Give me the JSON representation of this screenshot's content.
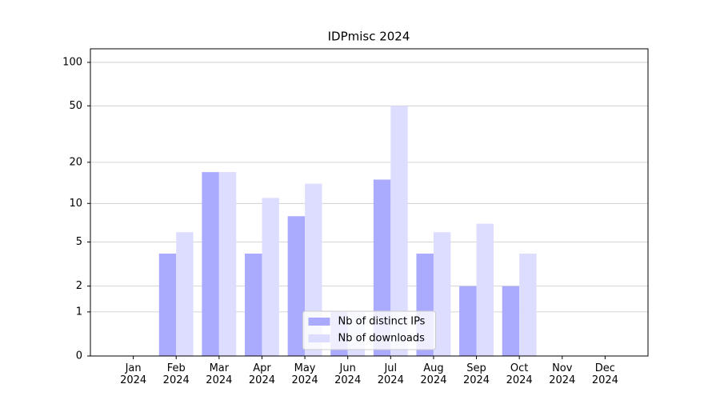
{
  "chart_data": {
    "type": "bar",
    "title": "IDPmisc 2024",
    "categories": [
      "Jan\n2024",
      "Feb\n2024",
      "Mar\n2024",
      "Apr\n2024",
      "May\n2024",
      "Jun\n2024",
      "Jul\n2024",
      "Aug\n2024",
      "Sep\n2024",
      "Oct\n2024",
      "Nov\n2024",
      "Dec\n2024"
    ],
    "series": [
      {
        "name": "Nb of distinct IPs",
        "color": "#aaaaff",
        "values": [
          0,
          4,
          17,
          4,
          8,
          1,
          15,
          4,
          2,
          2,
          0,
          0
        ]
      },
      {
        "name": "Nb of downloads",
        "color": "#ddddff",
        "values": [
          0,
          6,
          17,
          11,
          14,
          1,
          50,
          6,
          7,
          4,
          0,
          0
        ]
      }
    ],
    "scale": "log1p",
    "ylim": [
      0,
      124
    ],
    "yticks": [
      0,
      1,
      2,
      5,
      10,
      20,
      50,
      100
    ],
    "grid": true,
    "legend": "lower center"
  }
}
